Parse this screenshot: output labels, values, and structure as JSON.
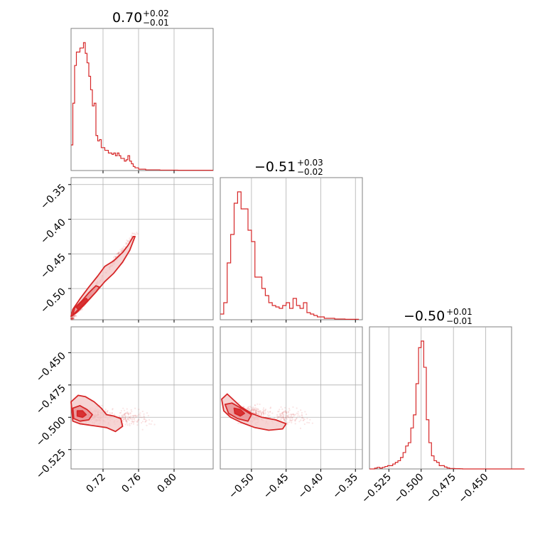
{
  "figure": {
    "colors": {
      "accent": "#d62728",
      "grid": "#b0b0b0",
      "frame": "#808080",
      "fill_light": "#f3c5c6",
      "fill_dark": "#e78b8d"
    }
  },
  "titles": {
    "p1": {
      "main": "0.70",
      "sup": "+0.02",
      "sub": "−0.01"
    },
    "p2": {
      "main": "−0.51",
      "sup": "+0.03",
      "sub": "−0.02"
    },
    "p3": {
      "main": "−0.50",
      "sup": "+0.01",
      "sub": "−0.01"
    }
  },
  "chart_data": [
    {
      "type": "histogram",
      "panel": "p1",
      "bins": [
        0.684,
        0.686,
        0.688,
        0.69,
        0.692,
        0.694,
        0.696,
        0.698,
        0.7,
        0.702,
        0.704,
        0.706,
        0.708,
        0.71,
        0.712,
        0.714,
        0.716,
        0.718,
        0.72,
        0.722,
        0.724,
        0.726,
        0.728,
        0.73,
        0.732,
        0.734,
        0.736,
        0.738,
        0.74,
        0.742,
        0.744,
        0.746,
        0.748,
        0.75,
        0.752,
        0.754,
        0.756,
        0.758,
        0.76,
        0.762,
        0.764,
        0.766,
        0.768,
        0.77,
        0.772,
        0.774,
        0.776,
        0.778,
        0.78,
        0.782,
        0.784,
        0.786,
        0.788,
        0.79,
        0.792,
        0.794,
        0.796,
        0.798,
        0.8,
        0.802,
        0.804,
        0.806,
        0.808,
        0.81,
        0.812,
        0.814,
        0.816,
        0.818,
        0.82,
        0.822,
        0.824,
        0.826,
        0.828,
        0.83,
        0.832,
        0.834,
        0.836,
        0.838,
        0.84,
        0.842
      ],
      "counts": [
        19,
        50,
        78,
        88,
        88,
        91,
        91,
        95,
        87,
        80,
        70,
        60,
        48,
        50,
        26,
        22,
        23,
        17,
        17,
        15,
        15,
        13,
        13,
        12,
        13,
        11,
        13,
        11,
        9,
        9,
        7,
        8,
        11,
        7,
        5,
        3,
        2,
        2,
        1,
        1,
        1,
        1,
        0.5,
        0.5,
        0.5,
        0.5,
        0.5,
        0.5,
        0.5,
        0.5,
        0.3,
        0.3,
        0.3,
        0.3,
        0.3,
        0.3,
        0.3,
        0.3,
        0.3,
        0.3,
        0.2,
        0.2,
        0.2,
        0.2,
        0.2,
        0.2,
        0.2,
        0.2,
        0.2,
        0.2,
        0.2,
        0.2,
        0.2,
        0.2,
        0.2,
        0.2,
        0.2,
        0.2,
        0.2,
        0.2
      ],
      "xlim": [
        0.684,
        0.844
      ],
      "xticks": [
        "0.72",
        "0.76",
        "0.80"
      ],
      "xtick_values": [
        0.72,
        0.76,
        0.8
      ]
    },
    {
      "type": "histogram",
      "panel": "p2",
      "bins": [
        -0.545,
        -0.54,
        -0.535,
        -0.53,
        -0.525,
        -0.52,
        -0.515,
        -0.51,
        -0.505,
        -0.5,
        -0.495,
        -0.49,
        -0.485,
        -0.48,
        -0.475,
        -0.47,
        -0.465,
        -0.46,
        -0.455,
        -0.45,
        -0.445,
        -0.44,
        -0.435,
        -0.43,
        -0.425,
        -0.42,
        -0.415,
        -0.41,
        -0.405,
        -0.4,
        -0.395,
        -0.39,
        -0.385,
        -0.38,
        -0.375,
        -0.37,
        -0.365,
        -0.36,
        -0.355,
        -0.35
      ],
      "counts": [
        4,
        12,
        40,
        60,
        82,
        90,
        78,
        78,
        63,
        55,
        30,
        30,
        22,
        17,
        12,
        10,
        9,
        8,
        10,
        12,
        8,
        15,
        10,
        8,
        12,
        5,
        4,
        3,
        2,
        2,
        1,
        1,
        1,
        0.5,
        0.5,
        0.5,
        0.3,
        0.3,
        0.3,
        0.3
      ],
      "xlim": [
        -0.545,
        -0.34
      ],
      "xticks": [
        "−0.50",
        "−0.45",
        "−0.40",
        "−0.35"
      ],
      "xtick_values": [
        -0.5,
        -0.45,
        -0.4,
        -0.35
      ]
    },
    {
      "type": "histogram",
      "panel": "p3",
      "bins": [
        -0.54,
        -0.538,
        -0.536,
        -0.534,
        -0.532,
        -0.53,
        -0.528,
        -0.526,
        -0.524,
        -0.522,
        -0.52,
        -0.518,
        -0.516,
        -0.514,
        -0.512,
        -0.51,
        -0.508,
        -0.506,
        -0.504,
        -0.502,
        -0.5,
        -0.498,
        -0.496,
        -0.494,
        -0.492,
        -0.49,
        -0.488,
        -0.486,
        -0.484,
        -0.482,
        -0.48,
        -0.478,
        -0.476,
        -0.474,
        -0.472,
        -0.47,
        -0.468,
        -0.466,
        -0.464,
        -0.462,
        -0.46,
        -0.458,
        -0.456,
        -0.454,
        -0.452,
        -0.45,
        -0.448,
        -0.446,
        -0.444,
        -0.442,
        -0.44,
        -0.438,
        -0.436,
        -0.434,
        -0.432,
        -0.43,
        -0.428,
        -0.426,
        -0.424,
        -0.422
      ],
      "counts": [
        0,
        0,
        0.5,
        1,
        0.5,
        1,
        1.5,
        2,
        2,
        3,
        4,
        5,
        7,
        10,
        14,
        16,
        25,
        33,
        52,
        74,
        78,
        62,
        30,
        16,
        8,
        5,
        4,
        2,
        2,
        1.2,
        0.6,
        0.3,
        0.3,
        0.2,
        0.2,
        0.1,
        0,
        0,
        0,
        0,
        0,
        0,
        0,
        0,
        0,
        0,
        0,
        0,
        0,
        0,
        0,
        0,
        0,
        0,
        0,
        0,
        0,
        0,
        0,
        0
      ],
      "xlim": [
        -0.54,
        -0.43
      ],
      "xticks": [
        "−0.525",
        "−0.500",
        "−0.475",
        "−0.450"
      ],
      "xtick_values": [
        -0.525,
        -0.5,
        -0.475,
        -0.45
      ]
    },
    {
      "type": "scatter-contour",
      "panel": "p21",
      "x_param": "p1",
      "y_param": "p2",
      "xlim": [
        0.684,
        0.844
      ],
      "ylim": [
        -0.545,
        -0.34
      ],
      "yticks": [
        "−0.35",
        "−0.40",
        "−0.45",
        "−0.50"
      ],
      "ytick_values": [
        -0.35,
        -0.4,
        -0.45,
        -0.5
      ],
      "trend": {
        "x": [
          0.684,
          0.757
        ],
        "y": [
          -0.545,
          -0.418
        ]
      },
      "contours": [
        {
          "level": "outer",
          "points": [
            [
              0.684,
              -0.54
            ],
            [
              0.69,
              -0.535
            ],
            [
              0.7,
              -0.522
            ],
            [
              0.712,
              -0.505
            ],
            [
              0.722,
              -0.49
            ],
            [
              0.732,
              -0.478
            ],
            [
              0.742,
              -0.462
            ],
            [
              0.75,
              -0.445
            ],
            [
              0.756,
              -0.425
            ],
            [
              0.754,
              -0.425
            ],
            [
              0.748,
              -0.438
            ],
            [
              0.742,
              -0.448
            ],
            [
              0.732,
              -0.46
            ],
            [
              0.722,
              -0.468
            ],
            [
              0.714,
              -0.482
            ],
            [
              0.704,
              -0.498
            ],
            [
              0.694,
              -0.515
            ],
            [
              0.686,
              -0.53
            ]
          ]
        },
        {
          "level": "middle",
          "points": [
            [
              0.686,
              -0.538
            ],
            [
              0.694,
              -0.528
            ],
            [
              0.704,
              -0.516
            ],
            [
              0.712,
              -0.505
            ],
            [
              0.716,
              -0.498
            ],
            [
              0.712,
              -0.496
            ],
            [
              0.704,
              -0.506
            ],
            [
              0.696,
              -0.518
            ],
            [
              0.688,
              -0.528
            ]
          ]
        },
        {
          "level": "inner",
          "points": [
            [
              0.692,
              -0.53
            ],
            [
              0.698,
              -0.523
            ],
            [
              0.703,
              -0.517
            ],
            [
              0.701,
              -0.514
            ],
            [
              0.695,
              -0.52
            ],
            [
              0.69,
              -0.527
            ]
          ]
        }
      ]
    },
    {
      "type": "scatter-contour",
      "panel": "p31",
      "x_param": "p1",
      "y_param": "p3",
      "xlim": [
        0.684,
        0.844
      ],
      "ylim": [
        -0.54,
        -0.43
      ],
      "yticks": [
        "−0.450",
        "−0.475",
        "−0.500",
        "−0.525"
      ],
      "ytick_values": [
        -0.45,
        -0.475,
        -0.5,
        -0.525
      ],
      "center": {
        "x": 0.696,
        "y": -0.498
      },
      "contours": [
        {
          "level": "outer",
          "points": [
            [
              0.684,
              -0.488
            ],
            [
              0.692,
              -0.483
            ],
            [
              0.7,
              -0.484
            ],
            [
              0.71,
              -0.488
            ],
            [
              0.718,
              -0.493
            ],
            [
              0.724,
              -0.498
            ],
            [
              0.732,
              -0.499
            ],
            [
              0.74,
              -0.501
            ],
            [
              0.742,
              -0.507
            ],
            [
              0.734,
              -0.511
            ],
            [
              0.724,
              -0.508
            ],
            [
              0.714,
              -0.507
            ],
            [
              0.704,
              -0.506
            ],
            [
              0.694,
              -0.505
            ],
            [
              0.686,
              -0.503
            ]
          ]
        },
        {
          "level": "middle",
          "points": [
            [
              0.686,
              -0.493
            ],
            [
              0.694,
              -0.491
            ],
            [
              0.702,
              -0.494
            ],
            [
              0.708,
              -0.498
            ],
            [
              0.704,
              -0.502
            ],
            [
              0.694,
              -0.503
            ],
            [
              0.687,
              -0.501
            ]
          ]
        },
        {
          "level": "inner",
          "points": [
            [
              0.691,
              -0.495
            ],
            [
              0.697,
              -0.495
            ],
            [
              0.701,
              -0.498
            ],
            [
              0.697,
              -0.5
            ],
            [
              0.691,
              -0.499
            ]
          ]
        }
      ]
    },
    {
      "type": "scatter-contour",
      "panel": "p32",
      "x_param": "p2",
      "y_param": "p3",
      "xlim": [
        -0.545,
        -0.34
      ],
      "ylim": [
        -0.54,
        -0.43
      ],
      "center": {
        "x": -0.517,
        "y": -0.497
      },
      "contours": [
        {
          "level": "outer",
          "points": [
            [
              -0.543,
              -0.486
            ],
            [
              -0.535,
              -0.482
            ],
            [
              -0.525,
              -0.487
            ],
            [
              -0.515,
              -0.492
            ],
            [
              -0.5,
              -0.497
            ],
            [
              -0.485,
              -0.5
            ],
            [
              -0.465,
              -0.502
            ],
            [
              -0.45,
              -0.505
            ],
            [
              -0.455,
              -0.509
            ],
            [
              -0.475,
              -0.51
            ],
            [
              -0.495,
              -0.508
            ],
            [
              -0.515,
              -0.504
            ],
            [
              -0.53,
              -0.5
            ],
            [
              -0.54,
              -0.495
            ]
          ]
        },
        {
          "level": "middle",
          "points": [
            [
              -0.538,
              -0.49
            ],
            [
              -0.528,
              -0.489
            ],
            [
              -0.515,
              -0.493
            ],
            [
              -0.5,
              -0.498
            ],
            [
              -0.505,
              -0.503
            ],
            [
              -0.52,
              -0.501
            ],
            [
              -0.533,
              -0.497
            ]
          ]
        },
        {
          "level": "inner",
          "points": [
            [
              -0.525,
              -0.493
            ],
            [
              -0.516,
              -0.494
            ],
            [
              -0.51,
              -0.497
            ],
            [
              -0.516,
              -0.499
            ],
            [
              -0.524,
              -0.497
            ]
          ]
        }
      ]
    }
  ]
}
